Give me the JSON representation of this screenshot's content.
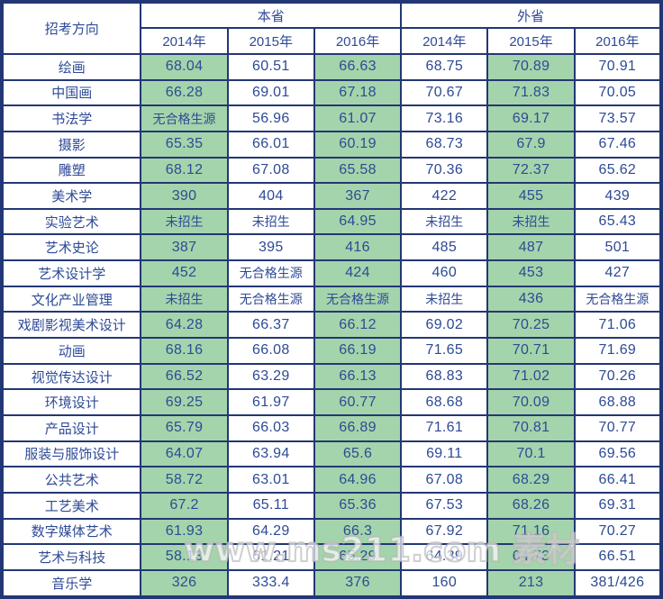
{
  "table": {
    "corner_header": "招考方向",
    "groups": [
      {
        "label": "本省",
        "years": [
          "2014年",
          "2015年",
          "2016年"
        ]
      },
      {
        "label": "外省",
        "years": [
          "2014年",
          "2015年",
          "2016年"
        ]
      }
    ],
    "rows": [
      {
        "label": "绘画",
        "values": [
          "68.04",
          "60.51",
          "66.63",
          "68.75",
          "70.89",
          "70.91"
        ]
      },
      {
        "label": "中国画",
        "values": [
          "66.28",
          "69.01",
          "67.18",
          "70.67",
          "71.83",
          "70.05"
        ]
      },
      {
        "label": "书法学",
        "values": [
          "无合格生源",
          "56.96",
          "61.07",
          "73.16",
          "69.17",
          "73.57"
        ]
      },
      {
        "label": "摄影",
        "values": [
          "65.35",
          "66.01",
          "60.19",
          "68.73",
          "67.9",
          "67.46"
        ]
      },
      {
        "label": "雕塑",
        "values": [
          "68.12",
          "67.08",
          "65.58",
          "70.36",
          "72.37",
          "65.62"
        ]
      },
      {
        "label": "美术学",
        "values": [
          "390",
          "404",
          "367",
          "422",
          "455",
          "439"
        ]
      },
      {
        "label": "实验艺术",
        "values": [
          "未招生",
          "未招生",
          "64.95",
          "未招生",
          "未招生",
          "65.43"
        ]
      },
      {
        "label": "艺术史论",
        "values": [
          "387",
          "395",
          "416",
          "485",
          "487",
          "501"
        ]
      },
      {
        "label": "艺术设计学",
        "values": [
          "452",
          "无合格生源",
          "424",
          "460",
          "453",
          "427"
        ]
      },
      {
        "label": "文化产业管理",
        "values": [
          "未招生",
          "无合格生源",
          "无合格生源",
          "未招生",
          "436",
          "无合格生源"
        ]
      },
      {
        "label": "戏剧影视美术设计",
        "values": [
          "64.28",
          "66.37",
          "66.12",
          "69.02",
          "70.25",
          "71.06"
        ]
      },
      {
        "label": "动画",
        "values": [
          "68.16",
          "66.08",
          "66.19",
          "71.65",
          "70.71",
          "71.69"
        ]
      },
      {
        "label": "视觉传达设计",
        "values": [
          "66.52",
          "63.29",
          "66.13",
          "68.83",
          "71.02",
          "70.26"
        ]
      },
      {
        "label": "环境设计",
        "values": [
          "69.25",
          "61.97",
          "60.77",
          "68.68",
          "70.09",
          "68.88"
        ]
      },
      {
        "label": "产品设计",
        "values": [
          "65.79",
          "66.03",
          "66.89",
          "71.61",
          "70.81",
          "70.77"
        ]
      },
      {
        "label": "服装与服饰设计",
        "values": [
          "64.07",
          "63.94",
          "65.6",
          "69.11",
          "70.1",
          "69.56"
        ]
      },
      {
        "label": "公共艺术",
        "values": [
          "58.72",
          "63.01",
          "64.96",
          "67.08",
          "68.29",
          "66.41"
        ]
      },
      {
        "label": "工艺美术",
        "values": [
          "67.2",
          "65.11",
          "65.36",
          "67.53",
          "68.26",
          "69.31"
        ]
      },
      {
        "label": "数字媒体艺术",
        "values": [
          "61.93",
          "64.29",
          "66.3",
          "67.92",
          "71.16",
          "70.27"
        ]
      },
      {
        "label": "艺术与科技",
        "values": [
          "58.13",
          "61.21",
          "65.29",
          "64.39",
          "64.73",
          "66.51"
        ]
      },
      {
        "label": "音乐学",
        "values": [
          "326",
          "333.4",
          "376",
          "160",
          "213",
          "381/426"
        ]
      }
    ],
    "green_column_indexes": [
      0,
      2,
      4
    ]
  },
  "watermark": "www.ms211.com 素材",
  "colors": {
    "highlight_green": "#a4d4ab",
    "text_navy": "#2e4a96",
    "border_navy": "#233775"
  }
}
